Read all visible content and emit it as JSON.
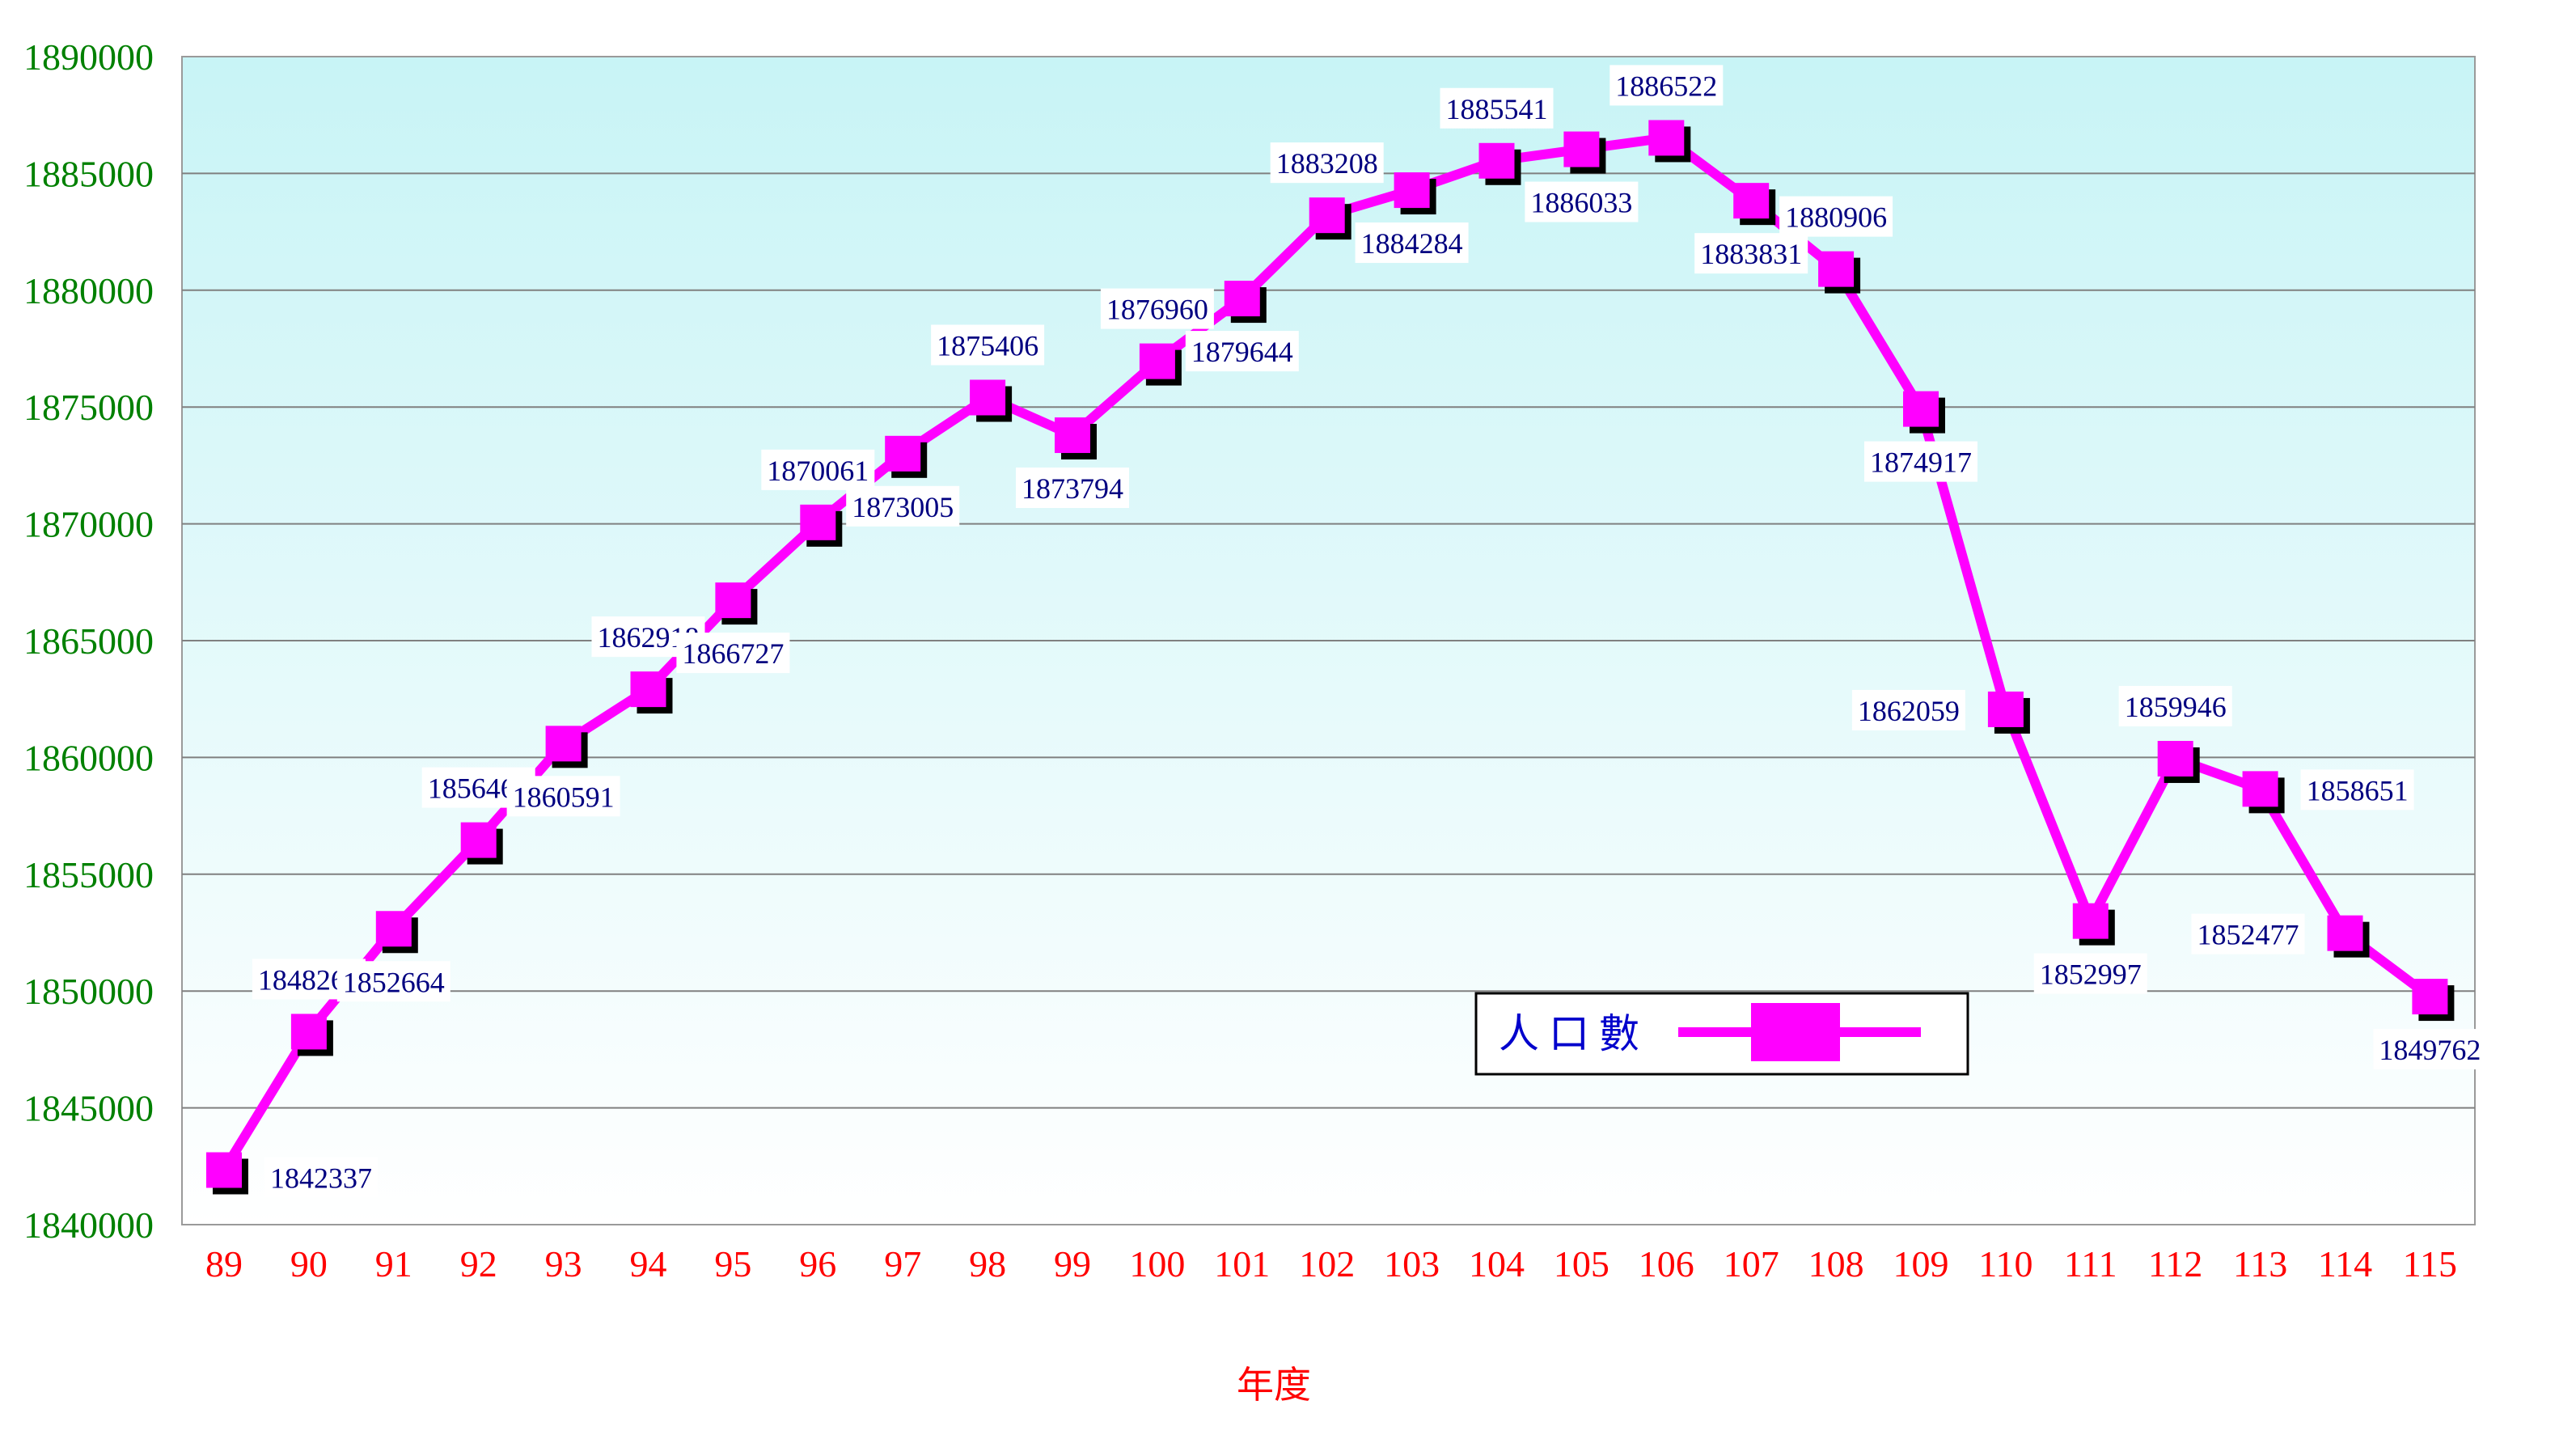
{
  "chart_data": {
    "type": "line",
    "title": "",
    "xlabel": "年度",
    "ylabel": "",
    "ylim": [
      1840000,
      1890000
    ],
    "ytick_step": 5000,
    "ytick_labels": [
      "1840000",
      "1845000",
      "1850000",
      "1855000",
      "1860000",
      "1865000",
      "1870000",
      "1875000",
      "1880000",
      "1885000",
      "1890000"
    ],
    "categories": [
      "89",
      "90",
      "91",
      "92",
      "93",
      "94",
      "95",
      "96",
      "97",
      "98",
      "99",
      "100",
      "101",
      "102",
      "103",
      "104",
      "105",
      "106",
      "107",
      "108",
      "109",
      "110",
      "111",
      "112",
      "113",
      "114",
      "115"
    ],
    "series": [
      {
        "name": "人口數",
        "values": [
          1842337,
          1848261,
          1852664,
          1856461,
          1860591,
          1862918,
          1866727,
          1870061,
          1873005,
          1875406,
          1873794,
          1876960,
          1879644,
          1883208,
          1884284,
          1885541,
          1886033,
          1886522,
          1883831,
          1880906,
          1874917,
          1862059,
          1852997,
          1859946,
          1858651,
          1852477,
          1849762
        ],
        "value_labels": [
          "1842337",
          "1848261",
          "1852664",
          "1856461",
          "1860591",
          "1862918",
          "1866727",
          "1870061",
          "1873005",
          "1875406",
          "1873794",
          "1876960",
          "1879644",
          "1883208",
          "1884284",
          "1885541",
          "1886033",
          "1886522",
          "1883831",
          "1880906",
          "1874917",
          "1862059",
          "1852997",
          "1859946",
          "1858651",
          "1852477",
          "1849762"
        ],
        "label_placement": [
          "below",
          "above",
          "below",
          "above",
          "below",
          "above",
          "below",
          "above",
          "below",
          "above",
          "below",
          "above",
          "below",
          "above",
          "below",
          "above",
          "below",
          "above",
          "below",
          "above",
          "below",
          "left",
          "below",
          "above",
          "right",
          "left",
          "below"
        ],
        "color": "#ff00ff",
        "marker": "square"
      }
    ],
    "grid": true,
    "legend": "bottom-right",
    "colors": {
      "line": "#ff00ff",
      "marker_shadow": "#000000",
      "ytick_text": "#008000",
      "xtick_text": "#ff0000",
      "xlabel_text": "#ff0000",
      "data_label_text": "#000080",
      "legend_text": "#0000cc",
      "gridline": "#808080",
      "plot_bg_top": "#c8f4f6",
      "plot_bg_bottom": "#ffffff"
    }
  }
}
